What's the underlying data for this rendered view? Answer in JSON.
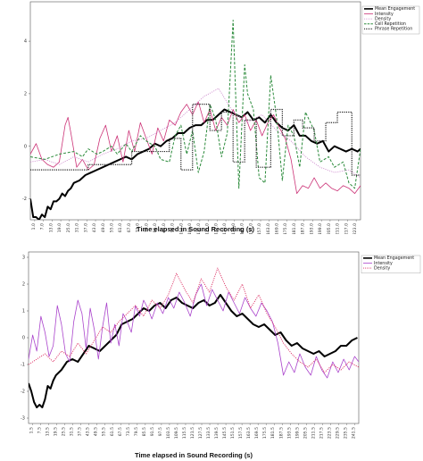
{
  "chart_data": [
    {
      "type": "line",
      "xlabel": "Time elapsed in Sound Recording (s)",
      "ylabel": "",
      "ylim": [
        -2.8,
        5.5
      ],
      "yticks": [
        -4,
        -2,
        0,
        2,
        4
      ],
      "xlim": [
        0,
        228
      ],
      "xtick_labels": [
        "1.0",
        "7.0",
        "13.0",
        "19.0",
        "25.0",
        "31.0",
        "37.0",
        "43.0",
        "49.0",
        "55.0",
        "61.0",
        "67.0",
        "73.0",
        "79.0",
        "85.0",
        "91.0",
        "97.0",
        "103.0",
        "109.0",
        "115.0",
        "121.0",
        "127.0",
        "133.0",
        "139.0",
        "145.0",
        "151.0",
        "157.0",
        "163.0",
        "169.0",
        "175.0",
        "181.0",
        "187.0",
        "193.0",
        "199.0",
        "205.0",
        "211.0",
        "217.0",
        "223.0"
      ],
      "legend_position": "top-right",
      "series": [
        {
          "name": "Mean Engagement",
          "color": "#000000",
          "style": "solid",
          "width": 2,
          "x": [
            0,
            2,
            4,
            6,
            8,
            10,
            12,
            14,
            16,
            18,
            20,
            22,
            24,
            26,
            28,
            30,
            34,
            38,
            42,
            46,
            50,
            54,
            58,
            62,
            66,
            70,
            74,
            78,
            82,
            86,
            90,
            94,
            98,
            102,
            106,
            110,
            114,
            118,
            122,
            126,
            130,
            134,
            138,
            142,
            146,
            150,
            154,
            158,
            162,
            166,
            170,
            174,
            178,
            182,
            186,
            190,
            194,
            198,
            202,
            206,
            210,
            214,
            218,
            222,
            226,
            228
          ],
          "y": [
            -2.0,
            -2.7,
            -2.7,
            -2.8,
            -2.6,
            -2.7,
            -2.3,
            -2.4,
            -2.1,
            -2.1,
            -2.0,
            -1.8,
            -1.9,
            -1.7,
            -1.6,
            -1.4,
            -1.3,
            -1.1,
            -1.0,
            -0.9,
            -0.8,
            -0.7,
            -0.6,
            -0.5,
            -0.4,
            -0.5,
            -0.3,
            -0.2,
            -0.1,
            0.1,
            0.0,
            0.2,
            0.3,
            0.5,
            0.5,
            0.7,
            0.8,
            0.8,
            1.0,
            1.0,
            1.2,
            1.4,
            1.3,
            1.2,
            1.1,
            1.3,
            1.0,
            1.1,
            0.9,
            1.2,
            0.9,
            0.7,
            0.6,
            0.8,
            0.4,
            0.4,
            0.2,
            0.1,
            0.2,
            -0.2,
            0.0,
            -0.1,
            -0.2,
            -0.1,
            -0.2,
            -0.1
          ]
        },
        {
          "name": "Intensity",
          "color": "#cc3377",
          "style": "solid",
          "width": 0.8,
          "x": [
            0,
            4,
            8,
            12,
            16,
            20,
            24,
            26,
            28,
            32,
            36,
            40,
            44,
            48,
            52,
            56,
            60,
            64,
            68,
            72,
            76,
            80,
            84,
            88,
            92,
            96,
            100,
            104,
            108,
            112,
            116,
            120,
            124,
            128,
            132,
            136,
            140,
            144,
            148,
            152,
            156,
            160,
            164,
            168,
            172,
            176,
            180,
            184,
            188,
            192,
            196,
            200,
            204,
            208,
            212,
            216,
            220,
            224,
            228
          ],
          "y": [
            -0.3,
            0.1,
            -0.5,
            -0.7,
            -0.8,
            -0.6,
            0.8,
            1.1,
            0.5,
            -0.8,
            -0.5,
            -0.9,
            -0.7,
            0.3,
            0.8,
            -0.2,
            0.4,
            -0.6,
            0.6,
            -0.2,
            0.9,
            0.3,
            -0.3,
            0.7,
            0.2,
            1.0,
            0.8,
            1.3,
            1.6,
            1.2,
            1.7,
            0.9,
            1.4,
            0.6,
            1.1,
            0.8,
            1.4,
            0.9,
            1.2,
            0.6,
            1.0,
            0.4,
            0.9,
            1.2,
            0.7,
            0.3,
            -0.5,
            -1.8,
            -1.5,
            -1.6,
            -1.2,
            -1.6,
            -1.4,
            -1.6,
            -1.7,
            -1.5,
            -1.6,
            -1.8,
            -1.5
          ]
        },
        {
          "name": "Density",
          "color": "#cc88cc",
          "style": "dotted",
          "width": 0.8,
          "x": [
            0,
            10,
            20,
            30,
            40,
            50,
            60,
            70,
            80,
            90,
            100,
            110,
            120,
            130,
            140,
            150,
            160,
            170,
            180,
            190,
            200,
            210,
            220,
            228
          ],
          "y": [
            -0.6,
            -0.5,
            -0.7,
            -0.4,
            -0.6,
            -0.3,
            -0.1,
            0.2,
            0.3,
            0.6,
            0.9,
            1.4,
            1.9,
            2.2,
            1.3,
            0.9,
            1.2,
            0.6,
            0.2,
            -0.4,
            -0.8,
            -1.0,
            -0.9,
            -1.2
          ]
        },
        {
          "name": "Cell Repetition",
          "color": "#2a8a3a",
          "style": "dashed",
          "width": 1,
          "x": [
            0,
            10,
            20,
            30,
            36,
            40,
            46,
            50,
            56,
            60,
            66,
            70,
            76,
            80,
            86,
            90,
            96,
            100,
            104,
            108,
            112,
            116,
            120,
            124,
            128,
            132,
            136,
            140,
            144,
            148,
            150,
            154,
            158,
            162,
            166,
            170,
            174,
            178,
            182,
            186,
            190,
            196,
            200,
            206,
            210,
            216,
            220,
            224,
            228
          ],
          "y": [
            -0.4,
            -0.5,
            -0.3,
            -0.2,
            -0.4,
            -0.1,
            -0.3,
            -0.2,
            0.0,
            -0.3,
            0.1,
            -0.2,
            0.4,
            0.2,
            0.0,
            -0.5,
            -0.6,
            0.4,
            0.8,
            -0.3,
            0.6,
            -1.0,
            -0.2,
            1.6,
            1.0,
            -0.4,
            0.5,
            4.8,
            -1.6,
            3.1,
            2.0,
            1.4,
            -1.2,
            -1.4,
            2.7,
            1.1,
            -1.3,
            0.8,
            0.4,
            -0.8,
            1.3,
            0.6,
            -0.6,
            -0.4,
            -0.8,
            -0.6,
            -1.4,
            -1.6,
            -0.1
          ]
        },
        {
          "name": "Phrase Repetition",
          "color": "#222222",
          "style": "dotted",
          "width": 1.2,
          "x": [
            0,
            40,
            40,
            70,
            70,
            96,
            96,
            104,
            104,
            112,
            112,
            124,
            124,
            132,
            132,
            140,
            140,
            148,
            148,
            156,
            156,
            166,
            166,
            174,
            174,
            182,
            182,
            188,
            188,
            196,
            196,
            204,
            204,
            212,
            212,
            222,
            222,
            228
          ],
          "y": [
            -0.9,
            -0.9,
            -0.7,
            -0.7,
            -0.2,
            -0.2,
            0.3,
            0.3,
            -0.9,
            -0.9,
            1.6,
            1.6,
            0.6,
            0.6,
            1.3,
            1.3,
            -0.6,
            -0.6,
            1.0,
            1.0,
            -0.8,
            -0.8,
            1.4,
            1.4,
            0.4,
            0.4,
            1.0,
            1.0,
            0.7,
            0.7,
            0.2,
            0.2,
            0.9,
            0.9,
            1.3,
            1.3,
            -1.1,
            -1.1
          ]
        }
      ]
    },
    {
      "type": "line",
      "xlabel": "Time elapsed in Sound Recording (s)",
      "ylabel": "",
      "ylim": [
        -3.2,
        3.2
      ],
      "yticks": [
        -3,
        -2,
        -1,
        0,
        1,
        2,
        3
      ],
      "xlim": [
        0,
        241
      ],
      "xtick_labels": [
        "1.5",
        "7.5",
        "13.5",
        "19.5",
        "25.5",
        "31.5",
        "37.5",
        "43.5",
        "49.5",
        "55.5",
        "61.5",
        "67.5",
        "73.5",
        "79.5",
        "85.5",
        "91.5",
        "97.5",
        "103.5",
        "109.5",
        "115.5",
        "121.5",
        "127.5",
        "133.5",
        "139.5",
        "145.5",
        "151.5",
        "157.5",
        "163.5",
        "169.5",
        "175.5",
        "181.5",
        "187.5",
        "193.5",
        "199.5",
        "205.5",
        "211.5",
        "217.5",
        "223.5",
        "229.5",
        "235.5",
        "241.5"
      ],
      "legend_position": "top-right",
      "series": [
        {
          "name": "Mean Engagement",
          "color": "#000000",
          "style": "solid",
          "width": 2,
          "x": [
            0,
            2,
            4,
            6,
            8,
            10,
            12,
            14,
            16,
            18,
            20,
            24,
            28,
            32,
            36,
            40,
            44,
            48,
            52,
            56,
            60,
            64,
            68,
            72,
            76,
            80,
            84,
            88,
            92,
            96,
            100,
            104,
            108,
            112,
            116,
            120,
            124,
            128,
            132,
            136,
            140,
            144,
            148,
            152,
            156,
            160,
            164,
            168,
            172,
            176,
            180,
            184,
            188,
            192,
            196,
            200,
            204,
            208,
            212,
            216,
            220,
            224,
            228,
            232,
            236,
            240
          ],
          "y": [
            -1.7,
            -2.0,
            -2.4,
            -2.6,
            -2.5,
            -2.6,
            -2.3,
            -1.8,
            -1.9,
            -1.6,
            -1.4,
            -1.2,
            -0.9,
            -0.8,
            -0.9,
            -0.6,
            -0.3,
            -0.4,
            -0.5,
            -0.3,
            -0.1,
            0.1,
            0.5,
            0.6,
            0.7,
            0.9,
            1.1,
            1.0,
            1.2,
            1.3,
            1.1,
            1.4,
            1.5,
            1.3,
            1.2,
            1.1,
            1.3,
            1.4,
            1.2,
            1.3,
            1.6,
            1.3,
            1.0,
            0.8,
            0.9,
            0.7,
            0.5,
            0.4,
            0.5,
            0.3,
            0.1,
            0.2,
            -0.1,
            -0.3,
            -0.2,
            -0.4,
            -0.5,
            -0.6,
            -0.5,
            -0.7,
            -0.6,
            -0.5,
            -0.3,
            -0.3,
            -0.1,
            0.0
          ]
        },
        {
          "name": "Intensity",
          "color": "#aa44cc",
          "style": "solid",
          "width": 0.8,
          "x": [
            0,
            3,
            6,
            9,
            12,
            15,
            18,
            21,
            24,
            27,
            30,
            33,
            36,
            39,
            42,
            45,
            48,
            51,
            54,
            57,
            60,
            63,
            66,
            69,
            72,
            75,
            78,
            81,
            84,
            87,
            90,
            94,
            98,
            102,
            106,
            110,
            114,
            118,
            122,
            126,
            130,
            134,
            138,
            142,
            146,
            150,
            154,
            158,
            162,
            166,
            170,
            174,
            178,
            182,
            186,
            190,
            194,
            198,
            202,
            206,
            210,
            214,
            218,
            222,
            226,
            230,
            234,
            238,
            241
          ],
          "y": [
            -0.8,
            0.1,
            -0.5,
            0.8,
            0.2,
            -0.7,
            -0.3,
            1.2,
            0.5,
            -0.6,
            -0.9,
            0.6,
            1.4,
            0.9,
            -0.4,
            1.1,
            0.3,
            -0.8,
            0.4,
            1.3,
            -0.2,
            0.5,
            -0.3,
            0.9,
            0.6,
            0.2,
            1.2,
            0.8,
            1.4,
            1.1,
            0.7,
            1.3,
            0.9,
            1.5,
            1.1,
            1.7,
            1.3,
            0.8,
            1.6,
            2.0,
            1.2,
            1.8,
            1.4,
            1.0,
            1.7,
            1.3,
            0.9,
            1.5,
            1.1,
            0.8,
            1.3,
            1.0,
            0.6,
            -0.2,
            -1.4,
            -0.9,
            -1.3,
            -0.6,
            -1.1,
            -1.4,
            -0.7,
            -1.2,
            -1.5,
            -0.9,
            -1.3,
            -0.8,
            -1.2,
            -0.7,
            -0.9
          ]
        },
        {
          "name": "Density",
          "color": "#dd3366",
          "style": "dotted",
          "width": 0.9,
          "x": [
            0,
            6,
            12,
            18,
            24,
            30,
            36,
            42,
            48,
            54,
            60,
            66,
            72,
            78,
            84,
            90,
            96,
            102,
            108,
            114,
            120,
            126,
            132,
            138,
            144,
            150,
            156,
            162,
            168,
            174,
            180,
            186,
            192,
            198,
            204,
            210,
            216,
            222,
            228,
            234,
            241
          ],
          "y": [
            -1.0,
            -0.8,
            -0.6,
            -0.9,
            -0.5,
            -0.7,
            -0.2,
            -0.6,
            -0.1,
            0.4,
            0.2,
            0.6,
            0.9,
            1.2,
            0.8,
            1.4,
            1.1,
            1.6,
            2.4,
            1.8,
            1.3,
            2.2,
            1.7,
            2.6,
            1.9,
            1.4,
            2.0,
            1.1,
            1.6,
            0.9,
            0.4,
            -0.2,
            -0.6,
            -0.9,
            -1.1,
            -0.8,
            -1.3,
            -1.0,
            -1.2,
            -0.9,
            -1.1
          ]
        }
      ]
    }
  ]
}
